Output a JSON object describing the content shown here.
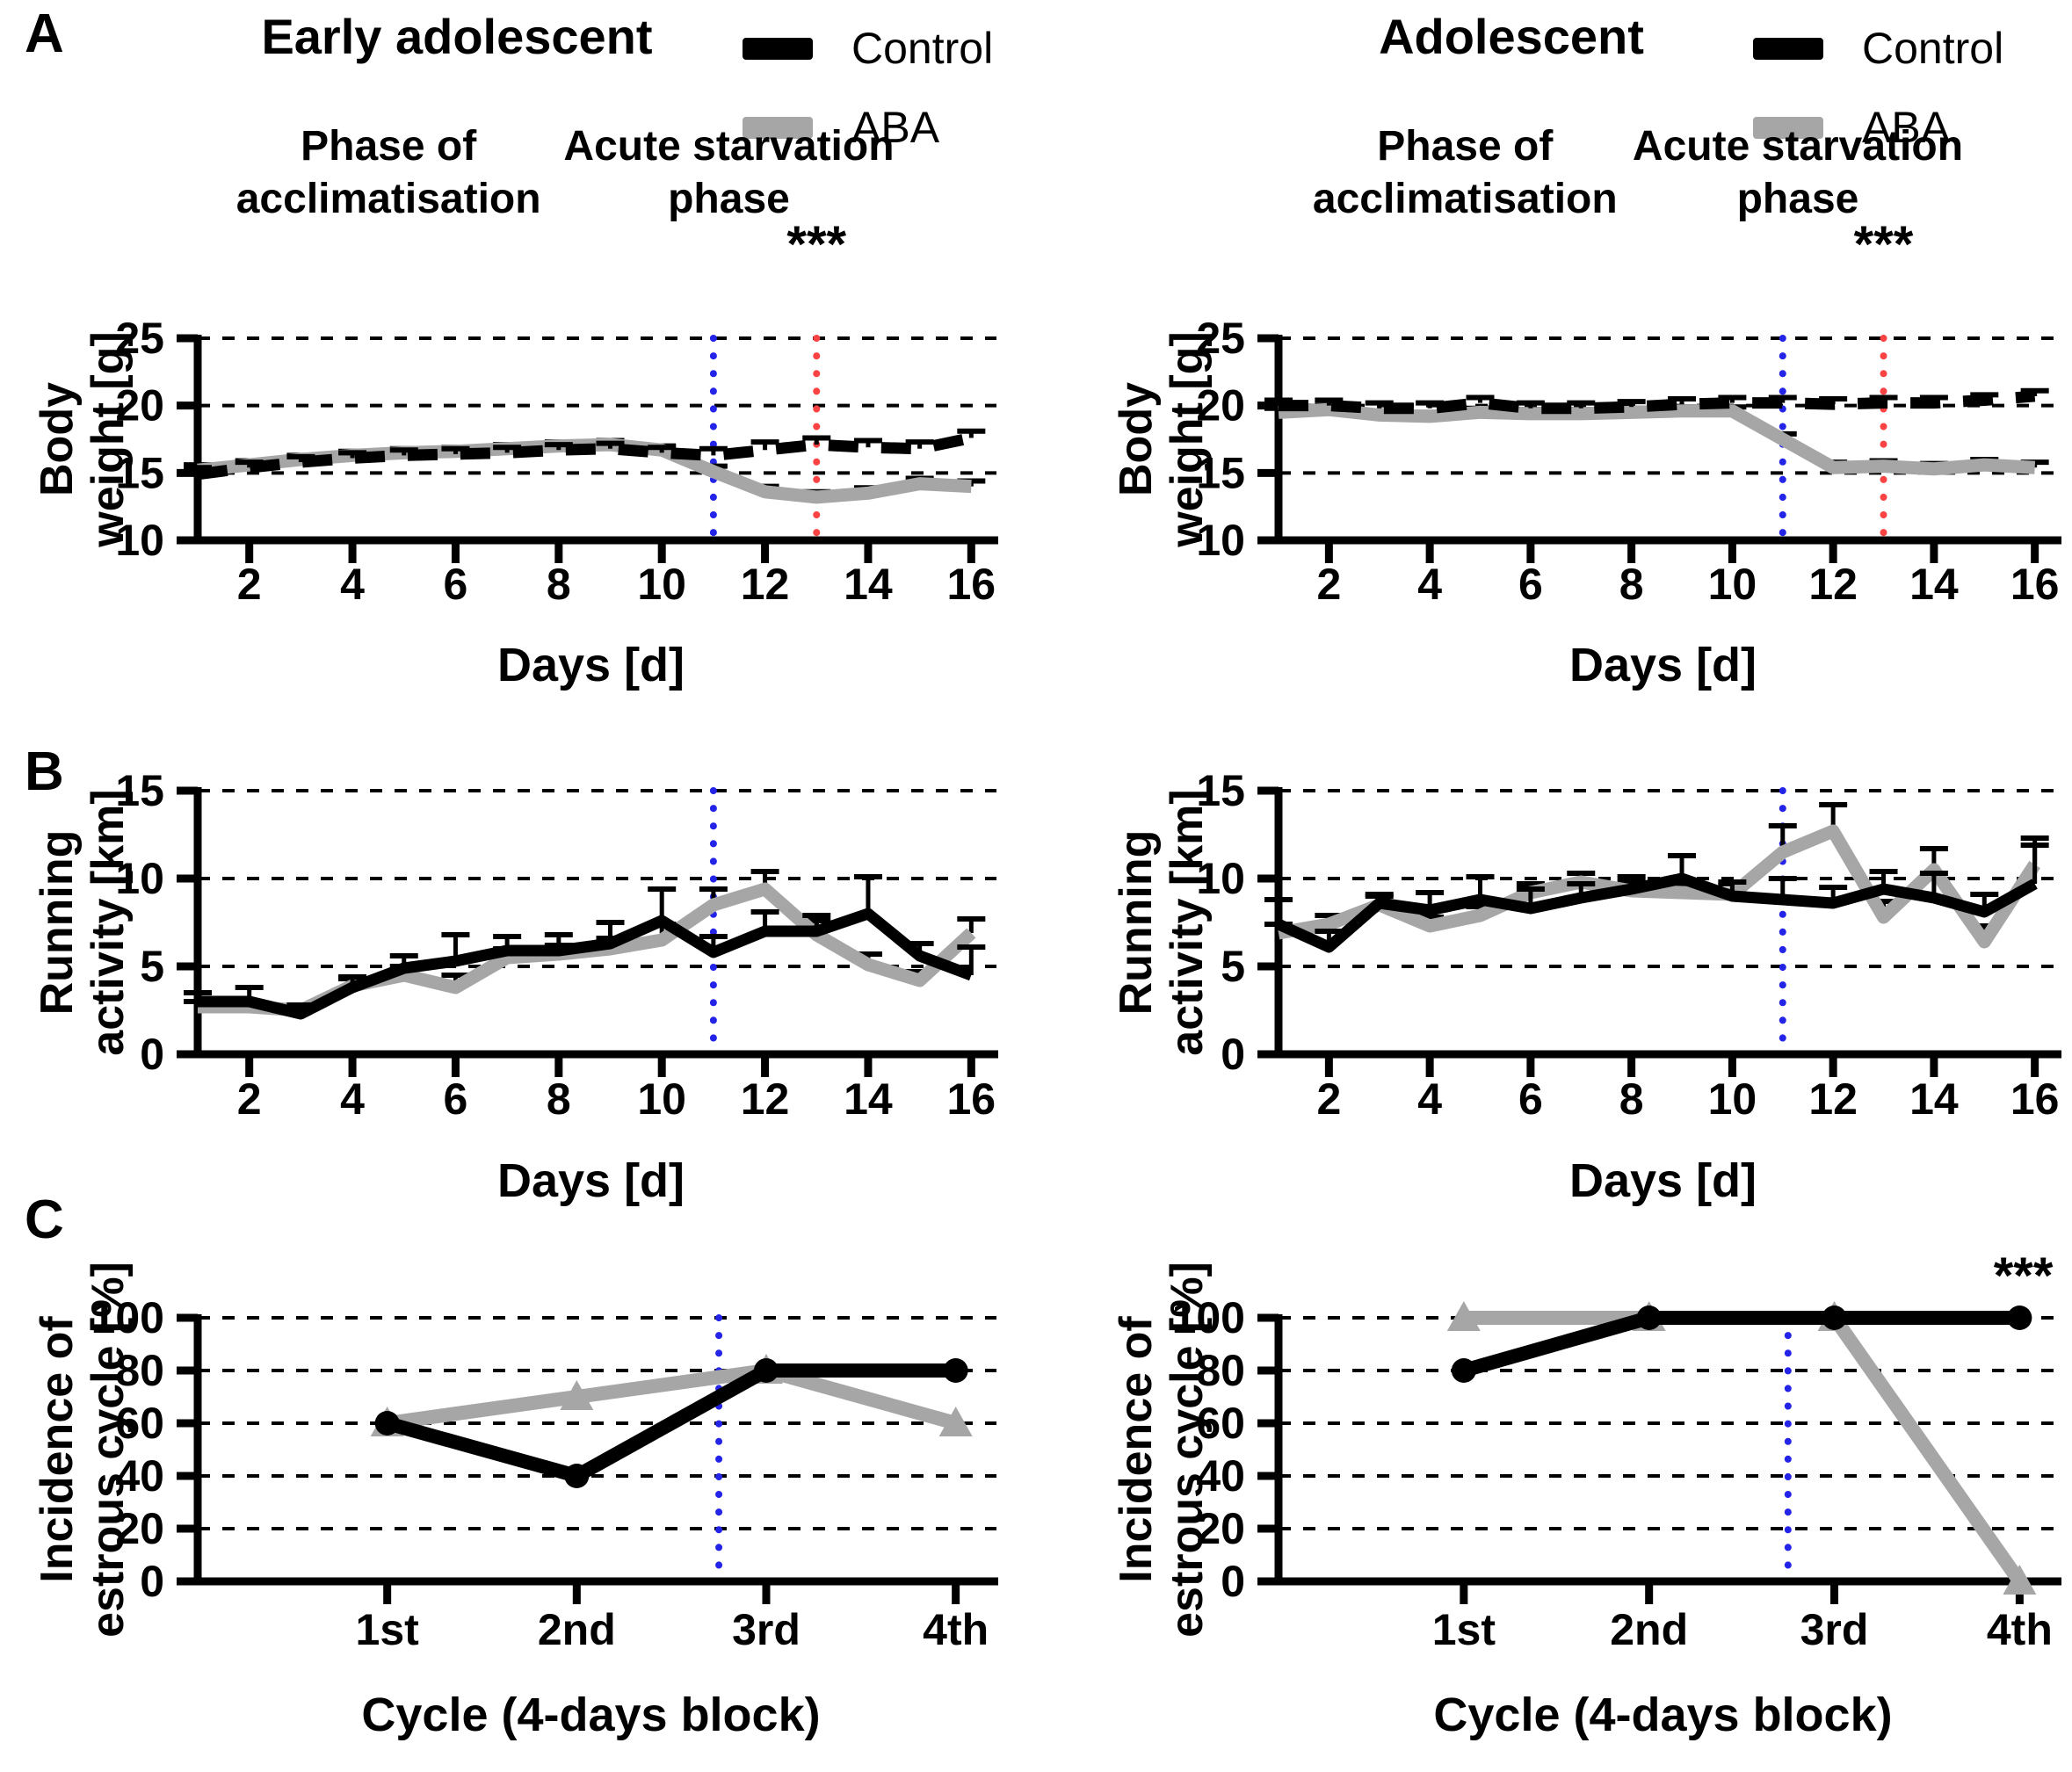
{
  "figure": {
    "panels": [
      {
        "label": "A"
      },
      {
        "label": "B"
      },
      {
        "label": "C"
      }
    ],
    "columns": [
      {
        "title": "Early adolescent"
      },
      {
        "title": "Adolescent"
      }
    ],
    "legend": {
      "control": "Control",
      "aba": "ABA"
    }
  },
  "colors": {
    "control": "#000000",
    "aba": "#a6a6a6",
    "starvation_line": "#2424e8",
    "endpoint_line": "#fb4343",
    "error_bar": "#000000"
  },
  "chart_data": [
    {
      "id": "bodyweight-early",
      "type": "line",
      "row": "A",
      "column": 0,
      "title": "Early adolescent",
      "ylabel_lines": [
        "Body",
        "weight [g]"
      ],
      "xlabel": "Days [d]",
      "ylim": [
        10,
        25
      ],
      "yticks": [
        10,
        15,
        20,
        25
      ],
      "grid_yticks": [
        15,
        20,
        25
      ],
      "xlim": [
        1,
        16.25
      ],
      "xticks": [
        2,
        4,
        6,
        8,
        10,
        12,
        14,
        16
      ],
      "xtick_labels": [
        "2",
        "4",
        "6",
        "8",
        "10",
        "12",
        "14",
        "16"
      ],
      "x": [
        1,
        2,
        3,
        4,
        5,
        6,
        7,
        8,
        9,
        10,
        11,
        12,
        13,
        14,
        15,
        16
      ],
      "phase_labels": [
        {
          "lines": [
            "Phase of",
            "acclimatisation"
          ],
          "x": 4.7
        },
        {
          "lines": [
            "Acute starvation",
            "phase"
          ],
          "x": 11.3
        }
      ],
      "annotations": [
        {
          "text": "***",
          "x": 13
        }
      ],
      "vlines": [
        {
          "x": 11,
          "color": "starvation_line",
          "name": "starvation-onset-vline"
        },
        {
          "x": 13,
          "color": "endpoint_line",
          "name": "endpoint-vline"
        }
      ],
      "series": [
        {
          "name": "Control",
          "color": "control",
          "dash": true,
          "values": [
            14.9,
            15.4,
            15.8,
            16.1,
            16.3,
            16.4,
            16.5,
            16.7,
            16.8,
            16.5,
            16.3,
            16.7,
            17.1,
            16.9,
            16.8,
            17.6
          ],
          "err": [
            0.5,
            0.4,
            0.4,
            0.4,
            0.4,
            0.4,
            0.4,
            0.4,
            0.4,
            0.4,
            0.5,
            0.6,
            0.5,
            0.5,
            0.5,
            0.5
          ]
        },
        {
          "name": "ABA",
          "color": "aba",
          "dash": false,
          "values": [
            15.2,
            15.6,
            16.0,
            16.3,
            16.5,
            16.6,
            16.8,
            17.0,
            17.1,
            16.7,
            15.1,
            13.6,
            13.2,
            13.5,
            14.2,
            14.0
          ],
          "err": [
            0.4,
            0.3,
            0.3,
            0.3,
            0.3,
            0.3,
            0.3,
            0.3,
            0.3,
            0.3,
            0.4,
            0.4,
            0.4,
            0.4,
            0.4,
            0.4
          ]
        }
      ]
    },
    {
      "id": "bodyweight-adolescent",
      "type": "line",
      "row": "A",
      "column": 1,
      "title": "Adolescent",
      "ylabel_lines": [
        "Body",
        "weight [g]"
      ],
      "xlabel": "Days [d]",
      "ylim": [
        10,
        25
      ],
      "yticks": [
        10,
        15,
        20,
        25
      ],
      "grid_yticks": [
        15,
        20,
        25
      ],
      "xlim": [
        1,
        16.25
      ],
      "xticks": [
        2,
        4,
        6,
        8,
        10,
        12,
        14,
        16
      ],
      "xtick_labels": [
        "2",
        "4",
        "6",
        "8",
        "10",
        "12",
        "14",
        "16"
      ],
      "x": [
        1,
        2,
        3,
        4,
        5,
        6,
        7,
        8,
        9,
        10,
        11,
        12,
        13,
        14,
        15,
        16
      ],
      "phase_labels": [
        {
          "lines": [
            "Phase of",
            "acclimatisation"
          ],
          "x": 4.7
        },
        {
          "lines": [
            "Acute starvation",
            "phase"
          ],
          "x": 11.3
        }
      ],
      "annotations": [
        {
          "text": "***",
          "x": 13
        }
      ],
      "vlines": [
        {
          "x": 11,
          "color": "starvation_line",
          "name": "starvation-onset-vline"
        },
        {
          "x": 13,
          "color": "endpoint_line",
          "name": "endpoint-vline"
        }
      ],
      "series": [
        {
          "name": "Control",
          "color": "control",
          "dash": true,
          "values": [
            20.0,
            20.0,
            19.8,
            19.8,
            20.2,
            19.8,
            19.8,
            19.9,
            20.1,
            20.2,
            20.2,
            20.1,
            20.2,
            20.2,
            20.4,
            20.7
          ],
          "err": [
            0.4,
            0.4,
            0.4,
            0.4,
            0.4,
            0.4,
            0.4,
            0.4,
            0.4,
            0.4,
            0.4,
            0.4,
            0.4,
            0.4,
            0.4,
            0.4
          ]
        },
        {
          "name": "ABA",
          "color": "aba",
          "dash": false,
          "values": [
            19.5,
            19.7,
            19.3,
            19.2,
            19.5,
            19.4,
            19.4,
            19.5,
            19.6,
            19.6,
            17.5,
            15.4,
            15.5,
            15.3,
            15.6,
            15.4
          ],
          "err": [
            0.3,
            0.3,
            0.3,
            0.3,
            0.3,
            0.3,
            0.3,
            0.3,
            0.3,
            0.3,
            0.4,
            0.4,
            0.4,
            0.4,
            0.4,
            0.4
          ]
        }
      ]
    },
    {
      "id": "running-early",
      "type": "line",
      "row": "B",
      "column": 0,
      "title": "Early adolescent",
      "ylabel_lines": [
        "Running",
        "activity [km]"
      ],
      "xlabel": "Days [d]",
      "ylim": [
        0,
        15
      ],
      "yticks": [
        0,
        5,
        10,
        15
      ],
      "grid_yticks": [
        5,
        10,
        15
      ],
      "xlim": [
        1,
        16.25
      ],
      "xticks": [
        2,
        4,
        6,
        8,
        10,
        12,
        14,
        16
      ],
      "xtick_labels": [
        "2",
        "4",
        "6",
        "8",
        "10",
        "12",
        "14",
        "16"
      ],
      "x": [
        1,
        2,
        3,
        4,
        5,
        6,
        7,
        8,
        9,
        10,
        11,
        12,
        13,
        14,
        15,
        16
      ],
      "vlines": [
        {
          "x": 11,
          "color": "starvation_line",
          "name": "starvation-onset-vline"
        }
      ],
      "series": [
        {
          "name": "Control",
          "color": "control",
          "dash": false,
          "values": [
            3.0,
            3.0,
            2.3,
            3.8,
            4.9,
            5.3,
            5.9,
            5.9,
            6.3,
            7.6,
            5.8,
            7.0,
            7.0,
            8.0,
            5.6,
            4.5
          ],
          "err": [
            0.5,
            0.8,
            0.5,
            0.6,
            0.7,
            1.5,
            0.8,
            0.9,
            1.2,
            1.8,
            0.9,
            1.1,
            0.9,
            2.1,
            0.7,
            1.6
          ]
        },
        {
          "name": "ABA",
          "color": "aba",
          "dash": false,
          "values": [
            2.7,
            2.7,
            2.5,
            3.9,
            4.5,
            3.8,
            5.5,
            5.7,
            6.0,
            6.5,
            8.5,
            9.4,
            6.8,
            5.1,
            4.2,
            6.9
          ],
          "err": [
            0.3,
            0.3,
            0.3,
            0.4,
            0.5,
            0.7,
            0.5,
            0.5,
            0.6,
            0.9,
            0.9,
            1.0,
            0.8,
            0.6,
            0.5,
            0.8
          ]
        }
      ]
    },
    {
      "id": "running-adolescent",
      "type": "line",
      "row": "B",
      "column": 1,
      "title": "Adolescent",
      "ylabel_lines": [
        "Running",
        "activity [km]"
      ],
      "xlabel": "Days [d]",
      "ylim": [
        0,
        15
      ],
      "yticks": [
        0,
        5,
        10,
        15
      ],
      "grid_yticks": [
        5,
        10,
        15
      ],
      "xlim": [
        1,
        16.25
      ],
      "xticks": [
        2,
        4,
        6,
        8,
        10,
        12,
        14,
        16
      ],
      "xtick_labels": [
        "2",
        "4",
        "6",
        "8",
        "10",
        "12",
        "14",
        "16"
      ],
      "x": [
        1,
        2,
        3,
        4,
        5,
        6,
        7,
        8,
        9,
        10,
        11,
        12,
        13,
        14,
        15,
        16
      ],
      "vlines": [
        {
          "x": 11,
          "color": "starvation_line",
          "name": "starvation-onset-vline"
        }
      ],
      "series": [
        {
          "name": "Control",
          "color": "control",
          "dash": false,
          "values": [
            7.4,
            6.1,
            8.6,
            8.2,
            8.8,
            8.3,
            8.9,
            9.4,
            10.0,
            9.0,
            8.8,
            8.6,
            9.4,
            8.9,
            8.1,
            9.7
          ],
          "err": [
            1.4,
            0.9,
            0.5,
            1.0,
            1.3,
            1.1,
            0.8,
            0.7,
            1.3,
            0.8,
            1.2,
            0.9,
            1.0,
            1.4,
            1.0,
            2.6
          ]
        },
        {
          "name": "ABA",
          "color": "aba",
          "dash": false,
          "values": [
            6.9,
            7.4,
            8.5,
            7.3,
            7.9,
            9.2,
            9.8,
            9.3,
            9.2,
            9.1,
            11.5,
            12.7,
            7.8,
            10.5,
            6.4,
            10.8
          ],
          "err": [
            0.5,
            0.5,
            0.5,
            0.5,
            0.5,
            0.5,
            0.5,
            0.5,
            0.5,
            0.6,
            1.5,
            1.5,
            0.9,
            1.2,
            0.9,
            1.1
          ]
        }
      ]
    },
    {
      "id": "estrous-early",
      "type": "line",
      "row": "C",
      "column": 0,
      "title": "Early adolescent",
      "ylabel_lines": [
        "Incidence of",
        "estrous cycle [%]"
      ],
      "xlabel": "Cycle (4-days block)",
      "ylim": [
        0,
        100
      ],
      "yticks": [
        0,
        20,
        40,
        60,
        80,
        100
      ],
      "grid_yticks": [
        20,
        40,
        60,
        80,
        100
      ],
      "xlim": [
        0,
        4.15
      ],
      "xticks": [
        1,
        2,
        3,
        4
      ],
      "xtick_labels": [
        "1st",
        "2nd",
        "3rd",
        "4th"
      ],
      "x": [
        1,
        2,
        3,
        4
      ],
      "vlines": [
        {
          "x": 2.75,
          "color": "starvation_line",
          "name": "starvation-onset-vline"
        }
      ],
      "series": [
        {
          "name": "Control",
          "color": "control",
          "dash": false,
          "marker": "circle",
          "values": [
            60,
            40,
            80,
            80
          ]
        },
        {
          "name": "ABA",
          "color": "aba",
          "dash": false,
          "marker": "triangle",
          "values": [
            60,
            70,
            80,
            60
          ]
        }
      ]
    },
    {
      "id": "estrous-adolescent",
      "type": "line",
      "row": "C",
      "column": 1,
      "title": "Adolescent",
      "ylabel_lines": [
        "Incidence of",
        "estrous cycle [%]"
      ],
      "xlabel": "Cycle (4-days block)",
      "ylim": [
        0,
        100
      ],
      "yticks": [
        0,
        20,
        40,
        60,
        80,
        100
      ],
      "grid_yticks": [
        20,
        40,
        60,
        80,
        100
      ],
      "xlim": [
        0,
        4.15
      ],
      "xticks": [
        1,
        2,
        3,
        4
      ],
      "xtick_labels": [
        "1st",
        "2nd",
        "3rd",
        "4th"
      ],
      "x": [
        1,
        2,
        3,
        4
      ],
      "annotations": [
        {
          "text": "***",
          "x": 4.02
        }
      ],
      "vlines": [
        {
          "x": 2.75,
          "color": "starvation_line",
          "name": "starvation-onset-vline"
        }
      ],
      "series": [
        {
          "name": "Control",
          "color": "control",
          "dash": false,
          "marker": "circle",
          "values": [
            80,
            100,
            100,
            100
          ]
        },
        {
          "name": "ABA",
          "color": "aba",
          "dash": false,
          "marker": "triangle",
          "values": [
            100,
            100,
            100,
            0
          ]
        }
      ]
    }
  ]
}
